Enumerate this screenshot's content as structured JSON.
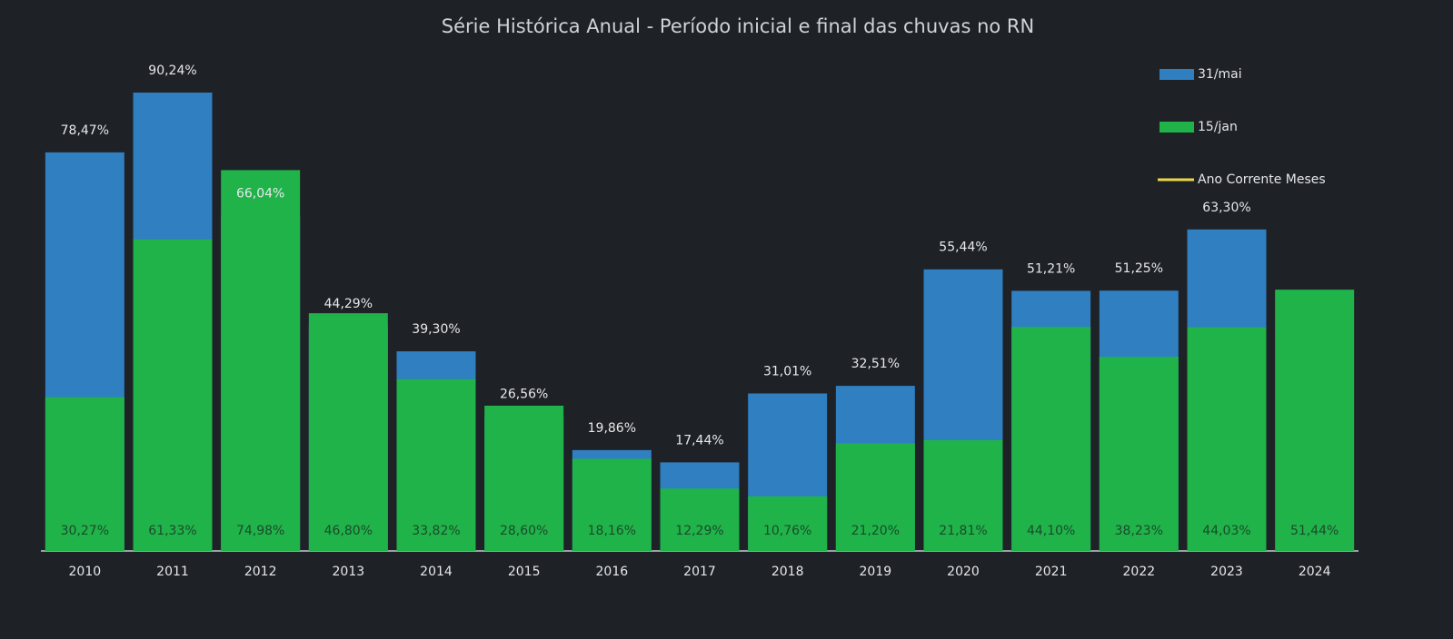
{
  "chart_data": {
    "type": "bar",
    "title": "Série Histórica Anual - Período inicial e final das chuvas no RN",
    "categories": [
      "2010",
      "2011",
      "2012",
      "2013",
      "2014",
      "2015",
      "2016",
      "2017",
      "2018",
      "2019",
      "2020",
      "2021",
      "2022",
      "2023",
      "2024"
    ],
    "series": [
      {
        "name": "31/mai",
        "color": "#2f7fc1",
        "values": [
          78.47,
          90.24,
          66.04,
          44.29,
          39.3,
          26.56,
          19.86,
          17.44,
          31.01,
          32.51,
          55.44,
          51.21,
          51.25,
          63.3,
          null
        ],
        "value_labels": [
          "78,47%",
          "90,24%",
          "66,04%",
          "44,29%",
          "39,30%",
          "26,56%",
          "19,86%",
          "17,44%",
          "31,01%",
          "32,51%",
          "55,44%",
          "51,21%",
          "51,25%",
          "63,30%",
          null
        ]
      },
      {
        "name": "15/jan",
        "color": "#1fb34a",
        "values": [
          30.27,
          61.33,
          74.98,
          46.8,
          33.82,
          28.6,
          18.16,
          12.29,
          10.76,
          21.2,
          21.81,
          44.1,
          38.23,
          44.03,
          51.44
        ],
        "value_labels": [
          "30,27%",
          "61,33%",
          "74,98%",
          "46,80%",
          "33,82%",
          "28,60%",
          "18,16%",
          "12,29%",
          "10,76%",
          "21,20%",
          "21,81%",
          "44,10%",
          "38,23%",
          "44,03%",
          "51,44%"
        ]
      },
      {
        "name": "Ano Corrente Meses",
        "color": "#e8d84a",
        "type": "line",
        "values": [
          null,
          null,
          null,
          null,
          null,
          null,
          null,
          null,
          null,
          null,
          null,
          null,
          null,
          null,
          null
        ]
      }
    ]
  }
}
